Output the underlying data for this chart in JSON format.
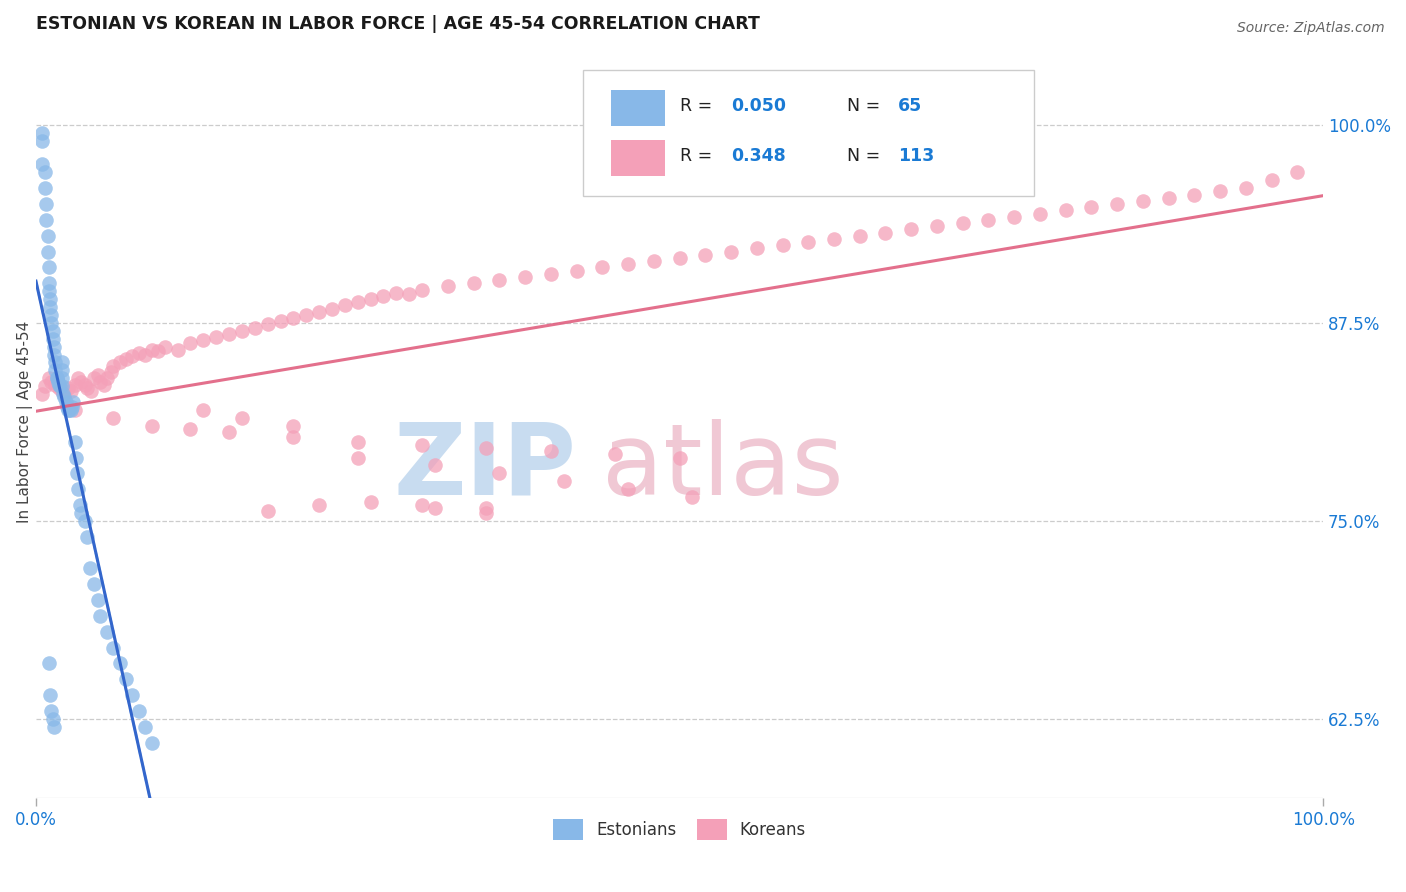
{
  "title": "ESTONIAN VS KOREAN IN LABOR FORCE | AGE 45-54 CORRELATION CHART",
  "source": "Source: ZipAtlas.com",
  "ylabel": "In Labor Force | Age 45-54",
  "y_ticks": [
    0.625,
    0.75,
    0.875,
    1.0
  ],
  "y_tick_labels": [
    "62.5%",
    "75.0%",
    "87.5%",
    "100.0%"
  ],
  "x_range": [
    0.0,
    1.0
  ],
  "y_range": [
    0.575,
    1.05
  ],
  "estonian_color": "#88B8E8",
  "korean_color": "#F4A0B8",
  "estonian_trend_color": "#3366CC",
  "korean_trend_color": "#E06080",
  "estonian_dash_color": "#99C0E8",
  "estonian_R": 0.05,
  "estonian_N": 65,
  "korean_R": 0.348,
  "korean_N": 113,
  "legend_text_color": "#1a7ad4",
  "legend_label_color": "#222222",
  "watermark_zip_color": "#C8DCF0",
  "watermark_atlas_color": "#F0C8D4",
  "est_x": [
    0.005,
    0.005,
    0.005,
    0.007,
    0.007,
    0.008,
    0.008,
    0.009,
    0.009,
    0.01,
    0.01,
    0.01,
    0.011,
    0.011,
    0.012,
    0.012,
    0.013,
    0.013,
    0.014,
    0.014,
    0.015,
    0.015,
    0.016,
    0.016,
    0.017,
    0.018,
    0.019,
    0.02,
    0.02,
    0.02,
    0.02,
    0.021,
    0.022,
    0.023,
    0.024,
    0.025,
    0.026,
    0.027,
    0.028,
    0.029,
    0.03,
    0.031,
    0.032,
    0.033,
    0.034,
    0.035,
    0.038,
    0.04,
    0.042,
    0.045,
    0.048,
    0.05,
    0.055,
    0.06,
    0.065,
    0.07,
    0.075,
    0.08,
    0.085,
    0.09,
    0.01,
    0.011,
    0.012,
    0.013,
    0.014
  ],
  "est_y": [
    0.995,
    0.99,
    0.975,
    0.97,
    0.96,
    0.95,
    0.94,
    0.93,
    0.92,
    0.91,
    0.9,
    0.895,
    0.89,
    0.885,
    0.88,
    0.875,
    0.87,
    0.865,
    0.86,
    0.855,
    0.85,
    0.845,
    0.84,
    0.84,
    0.838,
    0.836,
    0.835,
    0.85,
    0.845,
    0.84,
    0.835,
    0.83,
    0.828,
    0.825,
    0.822,
    0.82,
    0.82,
    0.82,
    0.822,
    0.825,
    0.8,
    0.79,
    0.78,
    0.77,
    0.76,
    0.755,
    0.75,
    0.74,
    0.72,
    0.71,
    0.7,
    0.69,
    0.68,
    0.67,
    0.66,
    0.65,
    0.64,
    0.63,
    0.62,
    0.61,
    0.66,
    0.64,
    0.63,
    0.625,
    0.62
  ],
  "kor_x": [
    0.005,
    0.007,
    0.01,
    0.012,
    0.015,
    0.018,
    0.02,
    0.022,
    0.025,
    0.027,
    0.03,
    0.033,
    0.035,
    0.038,
    0.04,
    0.043,
    0.045,
    0.048,
    0.05,
    0.053,
    0.055,
    0.058,
    0.06,
    0.065,
    0.07,
    0.075,
    0.08,
    0.085,
    0.09,
    0.095,
    0.1,
    0.11,
    0.12,
    0.13,
    0.14,
    0.15,
    0.16,
    0.17,
    0.18,
    0.19,
    0.2,
    0.21,
    0.22,
    0.23,
    0.24,
    0.25,
    0.26,
    0.27,
    0.28,
    0.29,
    0.3,
    0.32,
    0.34,
    0.36,
    0.38,
    0.4,
    0.42,
    0.44,
    0.46,
    0.48,
    0.5,
    0.52,
    0.54,
    0.56,
    0.58,
    0.6,
    0.62,
    0.64,
    0.66,
    0.68,
    0.7,
    0.72,
    0.74,
    0.76,
    0.78,
    0.8,
    0.82,
    0.84,
    0.86,
    0.88,
    0.9,
    0.92,
    0.94,
    0.96,
    0.98,
    0.03,
    0.06,
    0.09,
    0.12,
    0.15,
    0.2,
    0.25,
    0.3,
    0.35,
    0.4,
    0.45,
    0.5,
    0.3,
    0.35,
    0.18,
    0.22,
    0.26,
    0.31,
    0.35,
    0.13,
    0.16,
    0.2,
    0.25,
    0.31,
    0.36,
    0.41,
    0.46,
    0.51
  ],
  "kor_y": [
    0.83,
    0.835,
    0.84,
    0.838,
    0.836,
    0.834,
    0.832,
    0.83,
    0.834,
    0.832,
    0.836,
    0.84,
    0.838,
    0.836,
    0.834,
    0.832,
    0.84,
    0.842,
    0.838,
    0.836,
    0.84,
    0.844,
    0.848,
    0.85,
    0.852,
    0.854,
    0.856,
    0.855,
    0.858,
    0.857,
    0.86,
    0.858,
    0.862,
    0.864,
    0.866,
    0.868,
    0.87,
    0.872,
    0.874,
    0.876,
    0.878,
    0.88,
    0.882,
    0.884,
    0.886,
    0.888,
    0.89,
    0.892,
    0.894,
    0.893,
    0.896,
    0.898,
    0.9,
    0.902,
    0.904,
    0.906,
    0.908,
    0.91,
    0.912,
    0.914,
    0.916,
    0.918,
    0.92,
    0.922,
    0.924,
    0.926,
    0.928,
    0.93,
    0.932,
    0.934,
    0.936,
    0.938,
    0.94,
    0.942,
    0.944,
    0.946,
    0.948,
    0.95,
    0.952,
    0.954,
    0.956,
    0.958,
    0.96,
    0.965,
    0.97,
    0.82,
    0.815,
    0.81,
    0.808,
    0.806,
    0.803,
    0.8,
    0.798,
    0.796,
    0.794,
    0.792,
    0.79,
    0.76,
    0.758,
    0.756,
    0.76,
    0.762,
    0.758,
    0.755,
    0.82,
    0.815,
    0.81,
    0.79,
    0.785,
    0.78,
    0.775,
    0.77,
    0.765
  ],
  "est_trend": [
    0.845,
    0.855
  ],
  "kor_trend_start": 0.833,
  "kor_trend_end": 0.934
}
